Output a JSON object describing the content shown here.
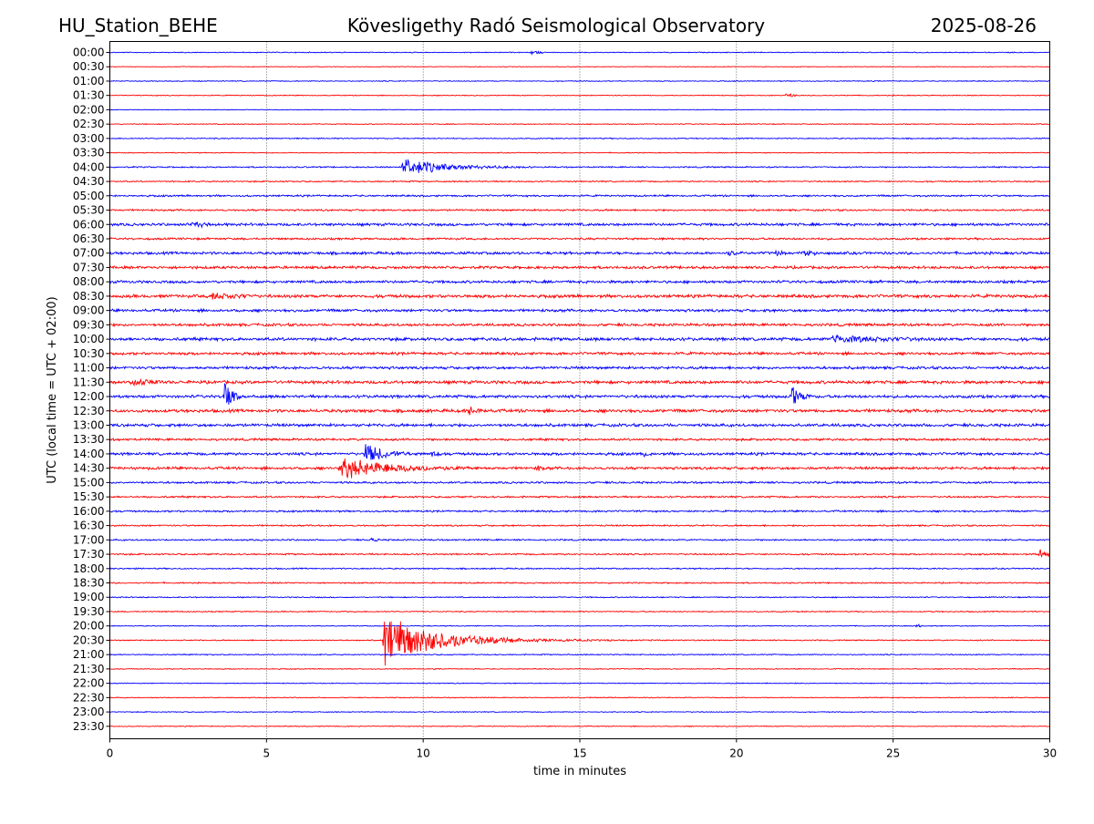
{
  "header": {
    "station": "HU_Station_BEHE",
    "observatory": "Kövesligethy Radó Seismological Observatory",
    "date": "2025-08-26"
  },
  "chart_data": {
    "type": "line",
    "title": "Kövesligethy Radó Seismological Observatory",
    "xlabel": "time in minutes",
    "ylabel": "UTC (local time = UTC + 02:00)",
    "xlim": [
      0,
      30
    ],
    "x_ticks": [
      0,
      5,
      10,
      15,
      20,
      25,
      30
    ],
    "vertical_grid": "dotted at each x tick",
    "row_labels": [
      "00:00",
      "00:30",
      "01:00",
      "01:30",
      "02:00",
      "02:30",
      "03:00",
      "03:30",
      "04:00",
      "04:30",
      "05:00",
      "05:30",
      "06:00",
      "06:30",
      "07:00",
      "07:30",
      "08:00",
      "08:30",
      "09:00",
      "09:30",
      "10:00",
      "10:30",
      "11:00",
      "11:30",
      "12:00",
      "12:30",
      "13:00",
      "13:30",
      "14:00",
      "14:30",
      "15:00",
      "15:30",
      "16:00",
      "16:30",
      "17:00",
      "17:30",
      "18:00",
      "18:30",
      "19:00",
      "19:30",
      "20:00",
      "20:30",
      "21:00",
      "21:30",
      "22:00",
      "22:30",
      "23:00",
      "23:30"
    ],
    "row_colors": [
      "#0000ff",
      "#ff0000"
    ],
    "noise_level": [
      0.4,
      0.3,
      0.4,
      0.4,
      0.3,
      0.4,
      0.5,
      0.4,
      0.6,
      0.6,
      0.8,
      0.8,
      1.2,
      0.9,
      1.2,
      1.2,
      1.2,
      1.4,
      1.2,
      1.2,
      1.4,
      1.2,
      1.2,
      1.4,
      1.3,
      1.4,
      1.3,
      1.0,
      1.2,
      1.2,
      0.9,
      0.8,
      0.8,
      0.7,
      0.7,
      0.7,
      0.6,
      0.6,
      0.5,
      0.5,
      0.4,
      0.5,
      0.5,
      0.4,
      0.4,
      0.4,
      0.4,
      0.4
    ],
    "events": [
      {
        "row": "00:00",
        "start": 13.4,
        "end": 13.8,
        "amplitude": 3,
        "decay": 0.3
      },
      {
        "row": "01:30",
        "start": 21.5,
        "end": 21.9,
        "amplitude": 3,
        "decay": 0.3
      },
      {
        "row": "04:00",
        "start": 9.3,
        "end": 13.5,
        "amplitude": 11,
        "decay": 1.2
      },
      {
        "row": "06:00",
        "start": 2.6,
        "end": 3.3,
        "amplitude": 4,
        "decay": 0.4
      },
      {
        "row": "07:00",
        "start": 19.7,
        "end": 20.0,
        "amplitude": 5,
        "decay": 0.2
      },
      {
        "row": "07:00",
        "start": 21.2,
        "end": 21.6,
        "amplitude": 4,
        "decay": 0.3
      },
      {
        "row": "07:00",
        "start": 22.1,
        "end": 22.6,
        "amplitude": 4,
        "decay": 0.3
      },
      {
        "row": "08:30",
        "start": 3.2,
        "end": 4.6,
        "amplitude": 4,
        "decay": 0.8
      },
      {
        "row": "10:00",
        "start": 23.0,
        "end": 26.0,
        "amplitude": 4,
        "decay": 1.5
      },
      {
        "row": "11:30",
        "start": 0.6,
        "end": 1.8,
        "amplitude": 5,
        "decay": 0.6
      },
      {
        "row": "12:00",
        "start": 3.6,
        "end": 4.2,
        "amplitude": 30,
        "decay": 0.2
      },
      {
        "row": "12:00",
        "start": 21.7,
        "end": 22.4,
        "amplitude": 24,
        "decay": 0.2
      },
      {
        "row": "12:30",
        "start": 11.4,
        "end": 12.0,
        "amplitude": 5,
        "decay": 0.3
      },
      {
        "row": "14:00",
        "start": 8.1,
        "end": 9.6,
        "amplitude": 16,
        "decay": 0.5
      },
      {
        "row": "14:00",
        "start": 10.2,
        "end": 10.5,
        "amplitude": 5,
        "decay": 0.2
      },
      {
        "row": "14:00",
        "start": 17.0,
        "end": 17.3,
        "amplitude": 4,
        "decay": 0.2
      },
      {
        "row": "14:30",
        "start": 7.3,
        "end": 11.8,
        "amplitude": 14,
        "decay": 1.4
      },
      {
        "row": "14:30",
        "start": 13.6,
        "end": 13.9,
        "amplitude": 5,
        "decay": 0.2
      },
      {
        "row": "17:00",
        "start": 8.3,
        "end": 8.6,
        "amplitude": 4,
        "decay": 0.2
      },
      {
        "row": "17:30",
        "start": 29.6,
        "end": 30.0,
        "amplitude": 8,
        "decay": 0.3
      },
      {
        "row": "20:00",
        "start": 25.7,
        "end": 25.9,
        "amplitude": 3,
        "decay": 0.2
      },
      {
        "row": "20:30",
        "start": 8.7,
        "end": 20.0,
        "amplitude": 32,
        "decay": 1.6
      }
    ]
  }
}
